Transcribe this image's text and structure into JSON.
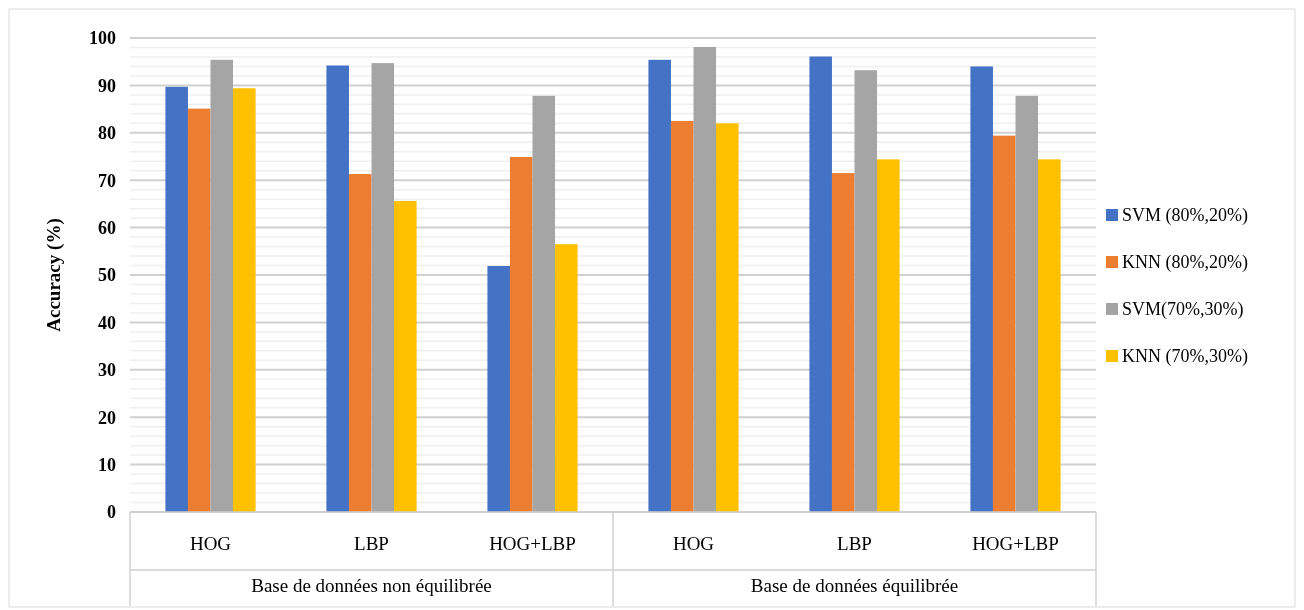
{
  "chart_data": {
    "type": "bar",
    "ylabel": "Accuracy (%)",
    "categories": [
      "HOG",
      "LBP",
      "HOG+LBP",
      "HOG",
      "LBP",
      "HOG+LBP"
    ],
    "series": [
      {
        "name": "SVM (80%,20%)",
        "color": "#4472c4",
        "values": [
          89.7,
          94.2,
          51.9,
          95.4,
          96.1,
          94.0
        ]
      },
      {
        "name": "KNN (80%,20%)",
        "color": "#ed7d31",
        "values": [
          85.1,
          71.3,
          74.9,
          82.5,
          71.5,
          79.4
        ]
      },
      {
        "name": "SVM(70%,30%)",
        "color": "#a5a5a5",
        "values": [
          95.4,
          94.7,
          87.8,
          98.1,
          93.2,
          87.8
        ]
      },
      {
        "name": "KNN (70%,30%)",
        "color": "#ffc000",
        "values": [
          89.4,
          65.6,
          56.5,
          82.0,
          74.4,
          74.4
        ]
      }
    ],
    "ylim": [
      0,
      100
    ],
    "yticks": [
      0,
      {
        "value": 2,
        "label": null
      },
      {
        "value": 4,
        "label": null
      },
      {
        "value": 6,
        "label": null
      },
      {
        "value": 8,
        "label": null
      },
      10,
      {
        "value": 12,
        "label": null
      },
      {
        "value": 14,
        "label": null
      },
      {
        "value": 16,
        "label": null
      },
      {
        "value": 18,
        "label": null
      },
      20,
      {
        "value": 22,
        "label": null
      },
      {
        "value": 24,
        "label": null
      },
      {
        "value": 26,
        "label": null
      },
      {
        "value": 28,
        "label": null
      },
      30,
      {
        "value": 32,
        "label": null
      },
      {
        "value": 34,
        "label": null
      },
      {
        "value": 36,
        "label": null
      },
      {
        "value": 38,
        "label": null
      },
      40,
      {
        "value": 42,
        "label": null
      },
      {
        "value": 44,
        "label": null
      },
      {
        "value": 46,
        "label": null
      },
      {
        "value": 48,
        "label": null
      },
      50,
      {
        "value": 52,
        "label": null
      },
      {
        "value": 54,
        "label": null
      },
      {
        "value": 56,
        "label": null
      },
      {
        "value": 58,
        "label": null
      },
      60,
      {
        "value": 62,
        "label": null
      },
      {
        "value": 64,
        "label": null
      },
      {
        "value": 66,
        "label": null
      },
      {
        "value": 68,
        "label": null
      },
      70,
      {
        "value": 72,
        "label": null
      },
      {
        "value": 74,
        "label": null
      },
      {
        "value": 76,
        "label": null
      },
      {
        "value": 78,
        "label": null
      },
      80,
      {
        "value": 82,
        "label": null
      },
      {
        "value": 84,
        "label": null
      },
      {
        "value": 86,
        "label": null
      },
      {
        "value": 88,
        "label": null
      },
      90,
      {
        "value": 92,
        "label": null
      },
      {
        "value": 94,
        "label": null
      },
      {
        "value": 96,
        "label": null
      },
      {
        "value": 98,
        "label": null
      },
      100
    ],
    "grid": true,
    "legend": "right",
    "annotations": [
      "Base de données non équilibrée",
      "Base de données équilibrée"
    ]
  }
}
